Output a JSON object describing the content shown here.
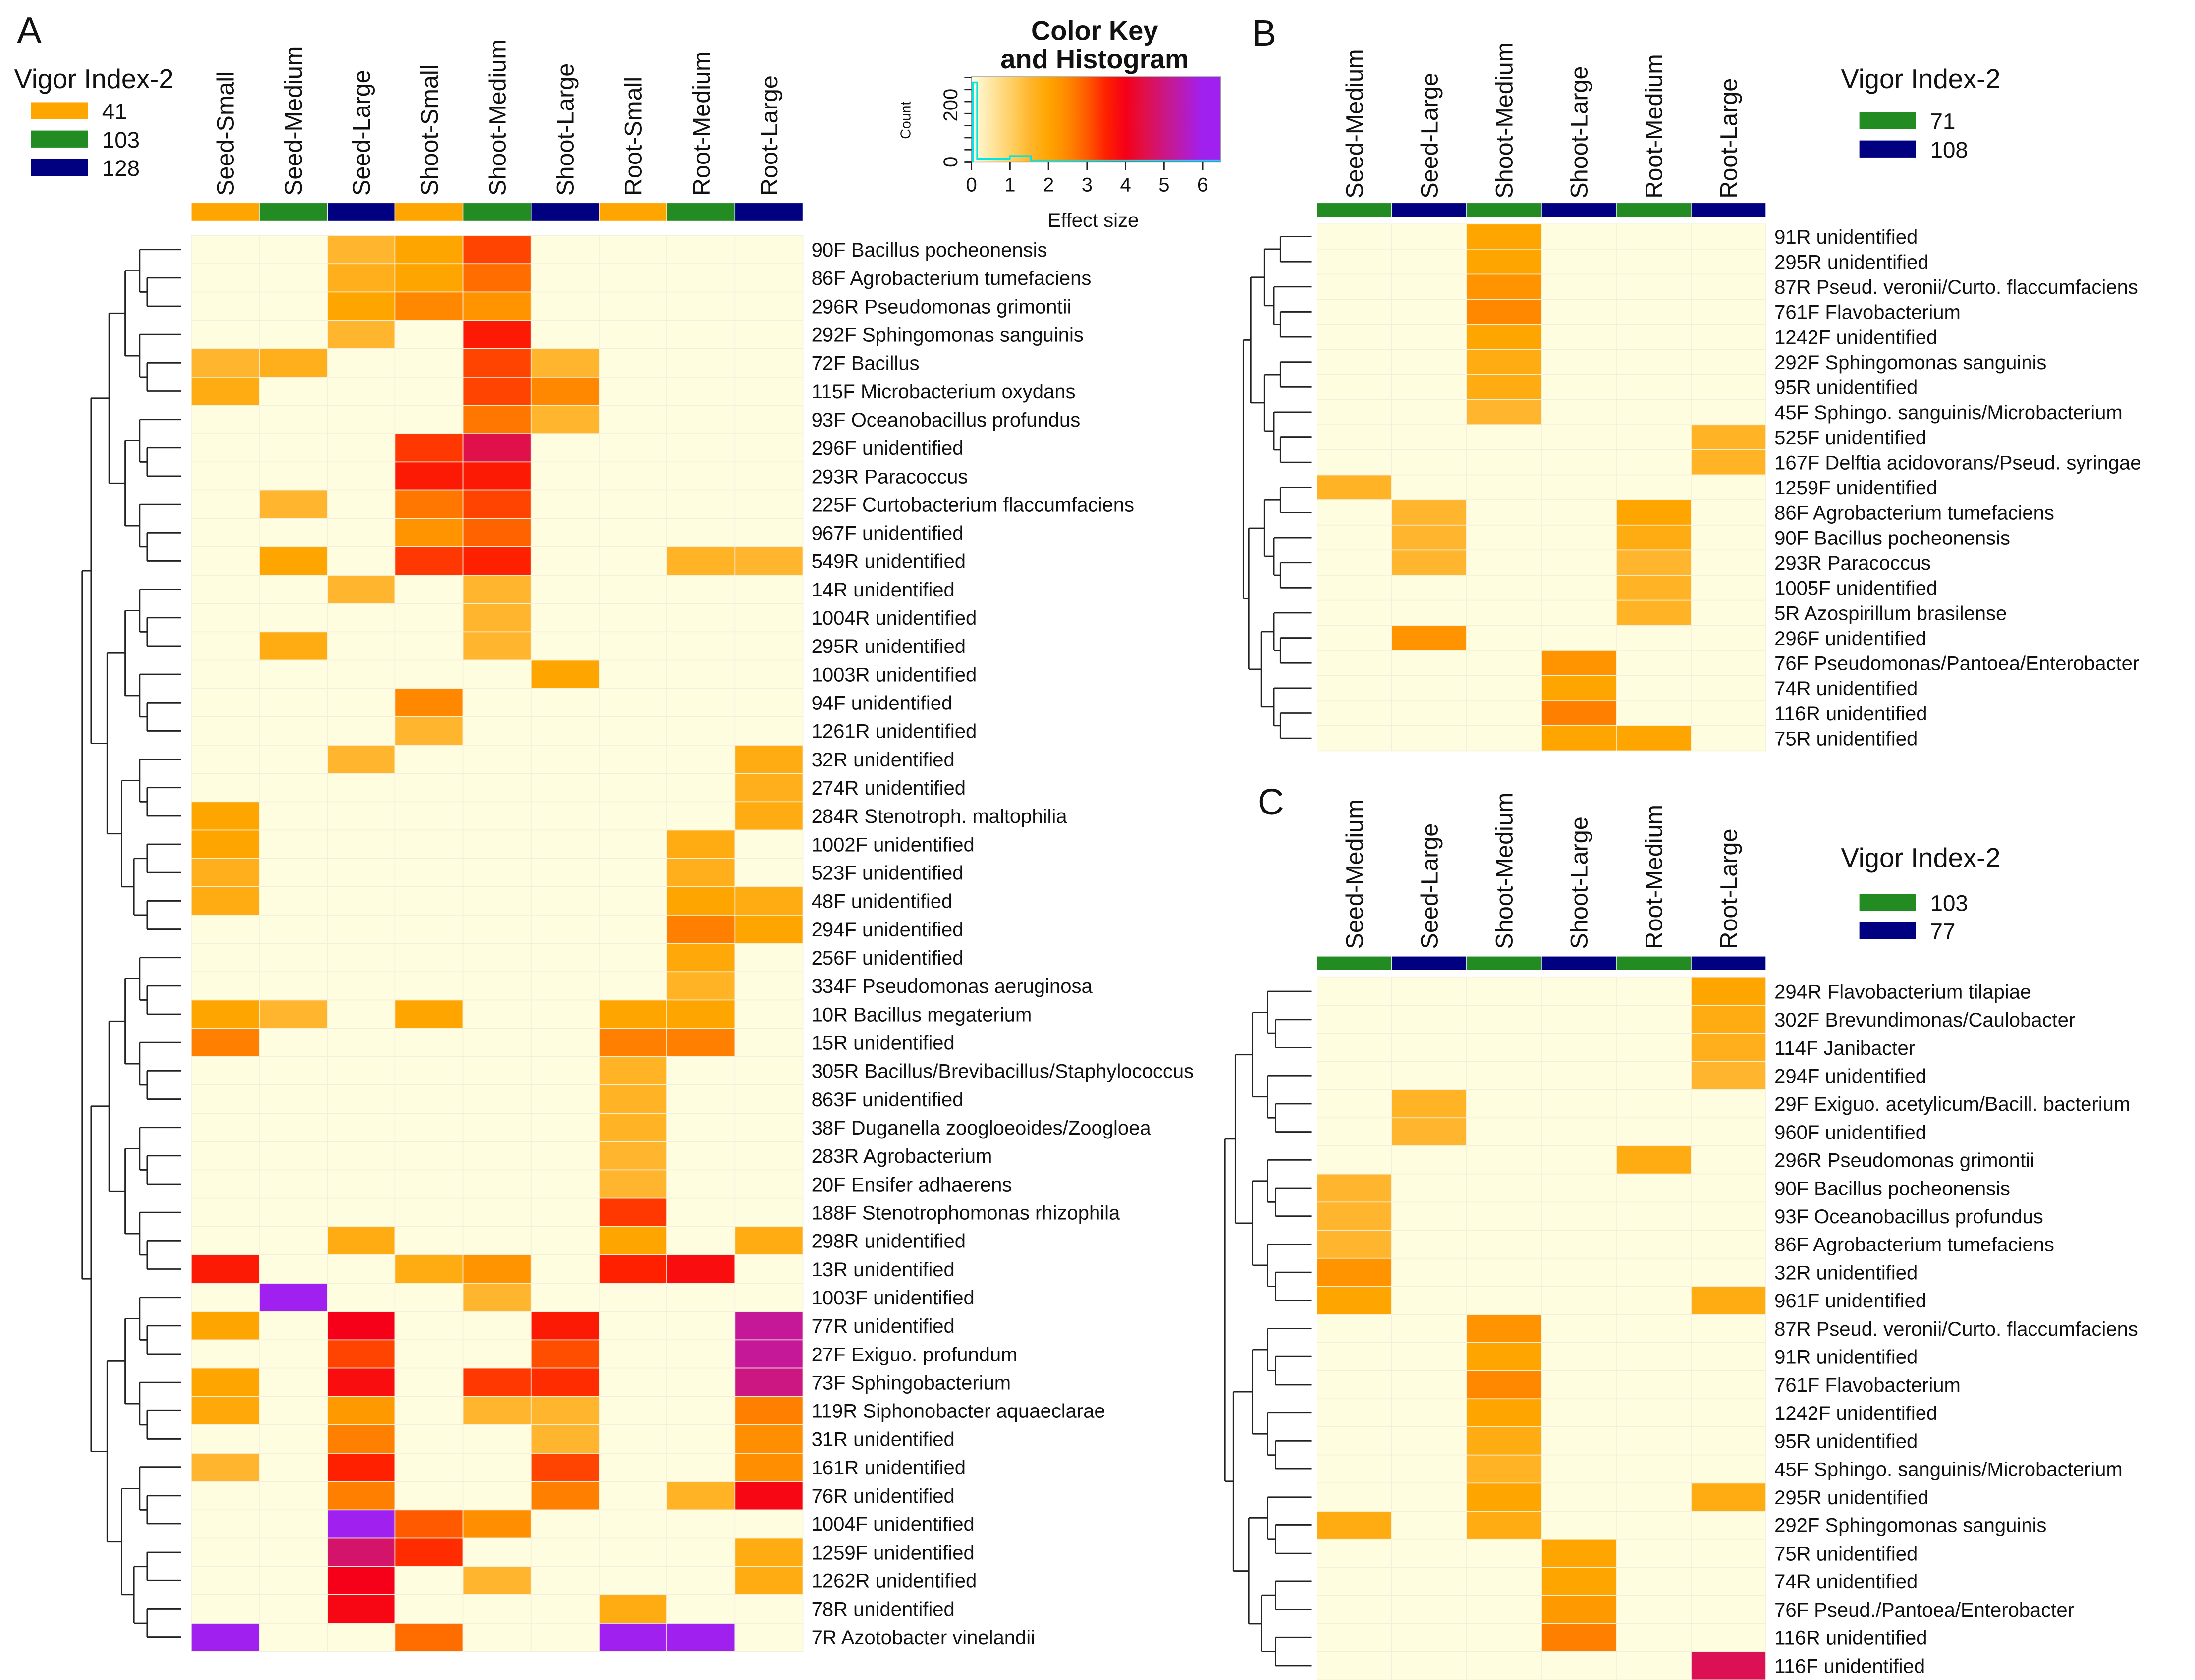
{
  "scale": {
    "title_line1": "Color Key",
    "title_line2": "and Histogram",
    "xlabel": "Effect size",
    "ylabel": "Count",
    "xticks": [
      "0",
      "1",
      "2",
      "3",
      "4",
      "5",
      "6"
    ],
    "yticks": [
      "0",
      "200"
    ],
    "range": [
      0,
      6.5
    ],
    "stops": [
      [
        0,
        "#fffde0"
      ],
      [
        1.2,
        "#ffc850"
      ],
      [
        1.5,
        "#ffb62e"
      ],
      [
        2,
        "#ffa500"
      ],
      [
        2.5,
        "#ff8800"
      ],
      [
        3,
        "#ff5a00"
      ],
      [
        3.5,
        "#ff2000"
      ],
      [
        4,
        "#f50018"
      ],
      [
        4.5,
        "#e0104a"
      ],
      [
        5.2,
        "#c41898"
      ],
      [
        6,
        "#a020f0"
      ],
      [
        6.5,
        "#a020f0"
      ]
    ]
  },
  "chart_data": [
    {
      "type": "heatmap",
      "panel": "A",
      "legend_title": "Vigor Index-2",
      "legend": [
        {
          "label": "41",
          "color": "#ffa500"
        },
        {
          "label": "103",
          "color": "#228b22"
        },
        {
          "label": "128",
          "color": "#000080"
        }
      ],
      "columns": [
        "Seed-Small",
        "Seed-Medium",
        "Seed-Large",
        "Shoot-Small",
        "Shoot-Medium",
        "Shoot-Large",
        "Root-Small",
        "Root-Medium",
        "Root-Large"
      ],
      "column_groups": [
        "41",
        "103",
        "128",
        "41",
        "103",
        "128",
        "41",
        "103",
        "128"
      ],
      "rows": [
        "90F Bacillus pocheonensis",
        "86F Agrobacterium tumefaciens",
        "296R Pseudomonas grimontii",
        "292F Sphingomonas sanguinis",
        "72F Bacillus",
        "115F Microbacterium oxydans",
        "93F Oceanobacillus profundus",
        "296F unidentified",
        "293R Paracoccus",
        "225F Curtobacterium flaccumfaciens",
        "967F unidentified",
        "549R unidentified",
        "14R unidentified",
        "1004R unidentified",
        "295R unidentified",
        "1003R unidentified",
        "94F unidentified",
        "1261R unidentified",
        "32R unidentified",
        "274R unidentified",
        "284R Stenotroph. maltophilia",
        "1002F unidentified",
        "523F unidentified",
        "48F unidentified",
        "294F unidentified",
        "256F unidentified",
        "334F Pseudomonas aeruginosa",
        "10R Bacillus megaterium",
        "15R unidentified",
        "305R Bacillus/Brevibacillus/Staphylococcus",
        "863F unidentified",
        "38F Duganella zoogloeoides/Zoogloea",
        "283R Agrobacterium",
        "20F Ensifer adhaerens",
        "188F Stenotrophomonas rhizophila",
        "298R unidentified",
        "13R unidentified",
        "1003F unidentified",
        "77R unidentified",
        "27F Exiguo. profundum",
        "73F Sphingobacterium",
        "119R Siphonobacter aquaeclarae",
        "31R unidentified",
        "161R unidentified",
        "76R unidentified",
        "1004F unidentified",
        "1259F unidentified",
        "1262R unidentified",
        "78R unidentified",
        "7R Azotobacter vinelandii"
      ],
      "values": [
        [
          0,
          0,
          1.5,
          2,
          3.2,
          0,
          0,
          0,
          0
        ],
        [
          0,
          0,
          1.7,
          2,
          2.8,
          0,
          0,
          0,
          0
        ],
        [
          0,
          0,
          2,
          2.5,
          2.3,
          0,
          0,
          0,
          0
        ],
        [
          0,
          0,
          1.5,
          0,
          3.6,
          0,
          0,
          0,
          0
        ],
        [
          1.5,
          1.7,
          0,
          0,
          3.2,
          1.5,
          0,
          0,
          0
        ],
        [
          1.8,
          0,
          0,
          0,
          3.2,
          2.5,
          0,
          0,
          0
        ],
        [
          0,
          0,
          0,
          0,
          2.7,
          1.5,
          0,
          0,
          0
        ],
        [
          0,
          0,
          0,
          3.3,
          4.5,
          0,
          0,
          0,
          0
        ],
        [
          0,
          0,
          0,
          3.6,
          3.6,
          0,
          0,
          0,
          0
        ],
        [
          0,
          1.5,
          0,
          2.7,
          3.2,
          0,
          0,
          0,
          0
        ],
        [
          0,
          0,
          0,
          2.3,
          2.9,
          0,
          0,
          0,
          0
        ],
        [
          0,
          2,
          0,
          3.3,
          3.5,
          0,
          0,
          1.6,
          1.5
        ],
        [
          0,
          0,
          1.5,
          0,
          1.5,
          0,
          0,
          0,
          0
        ],
        [
          0,
          0,
          0,
          0,
          1.5,
          0,
          0,
          0,
          0
        ],
        [
          0,
          1.8,
          0,
          0,
          1.5,
          0,
          0,
          0,
          0
        ],
        [
          0,
          0,
          0,
          0,
          0,
          2,
          0,
          0,
          0
        ],
        [
          0,
          0,
          0,
          2.5,
          0,
          0,
          0,
          0,
          0
        ],
        [
          0,
          0,
          0,
          1.5,
          0,
          0,
          0,
          0,
          0
        ],
        [
          0,
          0,
          1.5,
          0,
          0,
          0,
          0,
          0,
          1.8
        ],
        [
          0,
          0,
          0,
          0,
          0,
          0,
          0,
          0,
          1.7
        ],
        [
          2,
          0,
          0,
          0,
          0,
          0,
          0,
          0,
          1.8
        ],
        [
          2,
          0,
          0,
          0,
          0,
          0,
          0,
          1.8,
          0
        ],
        [
          1.7,
          0,
          0,
          0,
          0,
          0,
          0,
          1.7,
          0
        ],
        [
          1.8,
          0,
          0,
          0,
          0,
          0,
          0,
          2,
          1.8
        ],
        [
          0,
          0,
          0,
          0,
          0,
          0,
          0,
          2.6,
          2
        ],
        [
          0,
          0,
          0,
          0,
          0,
          0,
          0,
          1.9,
          0
        ],
        [
          0,
          0,
          0,
          0,
          0,
          0,
          0,
          1.6,
          0
        ],
        [
          2,
          1.5,
          0,
          2,
          0,
          0,
          2,
          2,
          0
        ],
        [
          2.6,
          0,
          0,
          0,
          0,
          0,
          2.6,
          2.6,
          0
        ],
        [
          0,
          0,
          0,
          0,
          0,
          0,
          1.6,
          0,
          0
        ],
        [
          0,
          0,
          0,
          0,
          0,
          0,
          1.6,
          0,
          0
        ],
        [
          0,
          0,
          0,
          0,
          0,
          0,
          1.6,
          0,
          0
        ],
        [
          0,
          0,
          0,
          0,
          0,
          0,
          1.5,
          0,
          0
        ],
        [
          0,
          0,
          0,
          0,
          0,
          0,
          1.5,
          0,
          0
        ],
        [
          0,
          0,
          0,
          0,
          0,
          0,
          3.3,
          0,
          0
        ],
        [
          0,
          0,
          1.8,
          0,
          0,
          0,
          2,
          0,
          1.8
        ],
        [
          3.6,
          0,
          0,
          1.8,
          2.3,
          0,
          3.5,
          3.8,
          0
        ],
        [
          0,
          6,
          0,
          0,
          1.5,
          0,
          0,
          0,
          0
        ],
        [
          2,
          0,
          4,
          0,
          0,
          3.6,
          0,
          0,
          5.2
        ],
        [
          0,
          0,
          3.2,
          0,
          0,
          3.1,
          0,
          0,
          5.2
        ],
        [
          2,
          0,
          3.8,
          0,
          3.3,
          3.4,
          0,
          0,
          5
        ],
        [
          1.9,
          0,
          2.2,
          0,
          1.5,
          1.5,
          0,
          0,
          2.6
        ],
        [
          0,
          0,
          2.6,
          0,
          0,
          1.5,
          0,
          0,
          2.4
        ],
        [
          1.5,
          0,
          3.5,
          0,
          0,
          3.2,
          0,
          0,
          2.4
        ],
        [
          0,
          0,
          2.6,
          0,
          0,
          2.6,
          0,
          1.6,
          3.9
        ],
        [
          0,
          0,
          6,
          3,
          2.4,
          0,
          0,
          0,
          0
        ],
        [
          0,
          0,
          4.8,
          3.4,
          0,
          0,
          0,
          0,
          1.8
        ],
        [
          0,
          0,
          4,
          0,
          1.5,
          0,
          0,
          0,
          1.8
        ],
        [
          0,
          0,
          3.9,
          0,
          0,
          0,
          1.8,
          0,
          0
        ],
        [
          6,
          0,
          0,
          2.8,
          0,
          0,
          6,
          6,
          0
        ]
      ]
    },
    {
      "type": "heatmap",
      "panel": "B",
      "legend_title": "Vigor Index-2",
      "legend": [
        {
          "label": "71",
          "color": "#228b22"
        },
        {
          "label": "108",
          "color": "#000080"
        }
      ],
      "columns": [
        "Seed-Medium",
        "Seed-Large",
        "Shoot-Medium",
        "Shoot-Large",
        "Root-Medium",
        "Root-Large"
      ],
      "column_groups": [
        "71",
        "108",
        "71",
        "108",
        "71",
        "108"
      ],
      "rows": [
        "91R unidentified",
        "295R unidentified",
        "87R Pseud. veronii/Curto. flaccumfaciens",
        "761F Flavobacterium",
        "1242F unidentified",
        "292F Sphingomonas sanguinis",
        "95R unidentified",
        "45F Sphingo. sanguinis/Microbacterium",
        "525F unidentified",
        "167F Delftia acidovorans/Pseud. syringae",
        "1259F unidentified",
        "86F Agrobacterium tumefaciens",
        "90F Bacillus pocheonensis",
        "293R Paracoccus",
        "1005F unidentified",
        "5R Azospirillum brasilense",
        "296F unidentified",
        "76F Pseudomonas/Pantoea/Enterobacter",
        "74R unidentified",
        "116R unidentified",
        "75R unidentified"
      ],
      "values": [
        [
          0,
          0,
          2,
          0,
          0,
          0
        ],
        [
          0,
          0,
          2,
          0,
          0,
          0
        ],
        [
          0,
          0,
          2.3,
          0,
          0,
          0
        ],
        [
          0,
          0,
          2.5,
          0,
          0,
          0
        ],
        [
          0,
          0,
          2,
          0,
          0,
          0
        ],
        [
          0,
          0,
          1.8,
          0,
          0,
          0
        ],
        [
          0,
          0,
          1.8,
          0,
          0,
          0
        ],
        [
          0,
          0,
          1.5,
          0,
          0,
          0
        ],
        [
          0,
          0,
          0,
          0,
          0,
          1.6
        ],
        [
          0,
          0,
          0,
          0,
          0,
          1.6
        ],
        [
          1.6,
          0,
          0,
          0,
          0,
          0
        ],
        [
          0,
          1.5,
          0,
          0,
          2,
          0
        ],
        [
          0,
          1.5,
          0,
          0,
          1.8,
          0
        ],
        [
          0,
          1.5,
          0,
          0,
          1.5,
          0
        ],
        [
          0,
          0,
          0,
          0,
          1.6,
          0
        ],
        [
          0,
          0,
          0,
          0,
          1.6,
          0
        ],
        [
          0,
          2.3,
          0,
          0,
          0,
          0
        ],
        [
          0,
          0,
          0,
          2.3,
          0,
          0
        ],
        [
          0,
          0,
          0,
          2,
          0,
          0
        ],
        [
          0,
          0,
          0,
          2.6,
          0,
          0
        ],
        [
          0,
          0,
          0,
          2,
          2,
          0
        ]
      ]
    },
    {
      "type": "heatmap",
      "panel": "C",
      "legend_title": "Vigor Index-2",
      "legend": [
        {
          "label": "103",
          "color": "#228b22"
        },
        {
          "label": "77",
          "color": "#000080"
        }
      ],
      "columns": [
        "Seed-Medium",
        "Seed-Large",
        "Shoot-Medium",
        "Shoot-Large",
        "Root-Medium",
        "Root-Large"
      ],
      "column_groups": [
        "103",
        "77",
        "103",
        "77",
        "103",
        "77"
      ],
      "rows": [
        "294R Flavobacterium tilapiae",
        "302F Brevundimonas/Caulobacter",
        "114F Janibacter",
        "294F unidentified",
        "29F Exiguo. acetylicum/Bacill. bacterium",
        "960F unidentified",
        "296R Pseudomonas grimontii",
        "90F Bacillus pocheonensis",
        "93F Oceanobacillus profundus",
        "86F Agrobacterium tumefaciens",
        "32R unidentified",
        "961F unidentified",
        "87R Pseud. veronii/Curto. flaccumfaciens",
        "91R unidentified",
        "761F Flavobacterium",
        "1242F unidentified",
        "95R unidentified",
        "45F Sphingo. sanguinis/Microbacterium",
        "295R unidentified",
        "292F Sphingomonas sanguinis",
        "75R unidentified",
        "74R unidentified",
        "76F Pseud./Pantoea/Enterobacter",
        "116R unidentified",
        "116F unidentified"
      ],
      "values": [
        [
          0,
          0,
          0,
          0,
          0,
          2
        ],
        [
          0,
          0,
          0,
          0,
          0,
          1.8
        ],
        [
          0,
          0,
          0,
          0,
          0,
          1.7
        ],
        [
          0,
          0,
          0,
          0,
          0,
          1.5
        ],
        [
          0,
          1.6,
          0,
          0,
          0,
          0
        ],
        [
          0,
          1.5,
          0,
          0,
          0,
          0
        ],
        [
          0,
          0,
          0,
          0,
          1.8,
          0
        ],
        [
          1.5,
          0,
          0,
          0,
          0,
          0
        ],
        [
          1.5,
          0,
          0,
          0,
          0,
          0
        ],
        [
          1.5,
          0,
          0,
          0,
          0,
          0
        ],
        [
          2.3,
          0,
          0,
          0,
          0,
          0
        ],
        [
          2,
          0,
          0,
          0,
          0,
          1.8
        ],
        [
          0,
          0,
          2.3,
          0,
          0,
          0
        ],
        [
          0,
          0,
          2,
          0,
          0,
          0
        ],
        [
          0,
          0,
          2.5,
          0,
          0,
          0
        ],
        [
          0,
          0,
          2,
          0,
          0,
          0
        ],
        [
          0,
          0,
          1.8,
          0,
          0,
          0
        ],
        [
          0,
          0,
          1.6,
          0,
          0,
          0
        ],
        [
          0,
          0,
          2,
          0,
          0,
          1.8
        ],
        [
          1.8,
          0,
          1.8,
          0,
          0,
          0
        ],
        [
          0,
          0,
          0,
          2,
          0,
          0
        ],
        [
          0,
          0,
          0,
          2,
          0,
          0
        ],
        [
          0,
          0,
          0,
          2.2,
          0,
          0
        ],
        [
          0,
          0,
          0,
          2.6,
          0,
          0
        ],
        [
          0,
          0,
          0,
          0,
          0,
          4.6
        ]
      ]
    }
  ]
}
